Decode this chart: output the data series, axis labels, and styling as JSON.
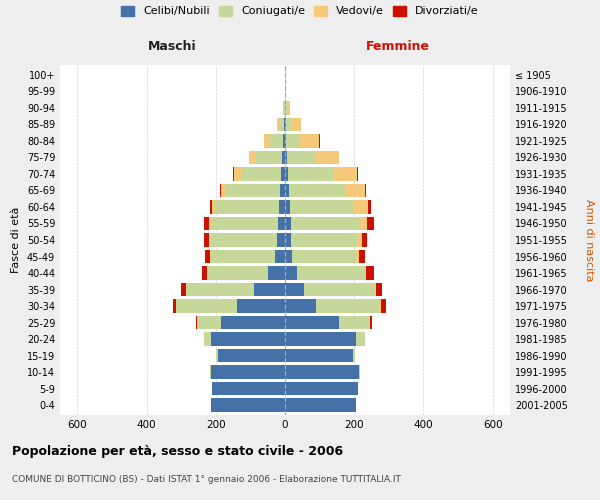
{
  "age_groups": [
    "0-4",
    "5-9",
    "10-14",
    "15-19",
    "20-24",
    "25-29",
    "30-34",
    "35-39",
    "40-44",
    "45-49",
    "50-54",
    "55-59",
    "60-64",
    "65-69",
    "70-74",
    "75-79",
    "80-84",
    "85-89",
    "90-94",
    "95-99",
    "100+"
  ],
  "birth_years": [
    "2001-2005",
    "1996-2000",
    "1991-1995",
    "1986-1990",
    "1981-1985",
    "1976-1980",
    "1971-1975",
    "1966-1970",
    "1961-1965",
    "1956-1960",
    "1951-1955",
    "1946-1950",
    "1941-1945",
    "1936-1940",
    "1931-1935",
    "1926-1930",
    "1921-1925",
    "1916-1920",
    "1911-1915",
    "1906-1910",
    "≤ 1905"
  ],
  "male": {
    "celibi": [
      215,
      210,
      215,
      195,
      215,
      185,
      140,
      90,
      50,
      30,
      22,
      20,
      18,
      15,
      12,
      8,
      5,
      3,
      1,
      0,
      0
    ],
    "coniugati": [
      0,
      0,
      2,
      5,
      20,
      70,
      175,
      195,
      175,
      185,
      195,
      195,
      185,
      155,
      115,
      75,
      40,
      15,
      4,
      1,
      0
    ],
    "vedovi": [
      0,
      0,
      0,
      0,
      0,
      0,
      0,
      1,
      1,
      2,
      3,
      5,
      8,
      15,
      20,
      20,
      15,
      5,
      0,
      0,
      0
    ],
    "divorziati": [
      0,
      0,
      0,
      0,
      0,
      2,
      8,
      15,
      15,
      15,
      15,
      15,
      5,
      2,
      2,
      1,
      1,
      0,
      0,
      0,
      0
    ]
  },
  "female": {
    "nubili": [
      205,
      210,
      215,
      195,
      205,
      155,
      90,
      55,
      35,
      20,
      18,
      18,
      15,
      12,
      8,
      5,
      4,
      2,
      1,
      0,
      0
    ],
    "coniugate": [
      0,
      0,
      2,
      8,
      25,
      90,
      185,
      205,
      195,
      185,
      190,
      195,
      185,
      160,
      130,
      85,
      40,
      15,
      5,
      1,
      0
    ],
    "vedove": [
      0,
      0,
      0,
      0,
      0,
      0,
      1,
      2,
      3,
      8,
      15,
      25,
      40,
      60,
      70,
      65,
      55,
      30,
      8,
      1,
      0
    ],
    "divorziate": [
      0,
      0,
      0,
      0,
      1,
      5,
      15,
      18,
      25,
      18,
      15,
      18,
      8,
      3,
      2,
      1,
      1,
      0,
      0,
      0,
      0
    ]
  },
  "colors": {
    "celibi": "#4472a8",
    "coniugati": "#c5d89a",
    "vedovi": "#f5c87a",
    "divorziati": "#cc1100"
  },
  "xlim": [
    -650,
    650
  ],
  "xticks": [
    -600,
    -400,
    -200,
    0,
    200,
    400,
    600
  ],
  "xticklabels": [
    "600",
    "400",
    "200",
    "0",
    "200",
    "400",
    "600"
  ],
  "title": "Popolazione per età, sesso e stato civile - 2006",
  "subtitle": "COMUNE DI BOTTICINO (BS) - Dati ISTAT 1° gennaio 2006 - Elaborazione TUTTITALIA.IT",
  "ylabel_left": "Fasce di età",
  "ylabel_right": "Anni di nascita",
  "maschi_label": "Maschi",
  "femmine_label": "Femmine",
  "legend_labels": [
    "Celibi/Nubili",
    "Coniugati/e",
    "Vedovi/e",
    "Divorziati/e"
  ],
  "bg_color": "#eeeeee",
  "plot_bg_color": "#ffffff",
  "bar_height": 0.82
}
